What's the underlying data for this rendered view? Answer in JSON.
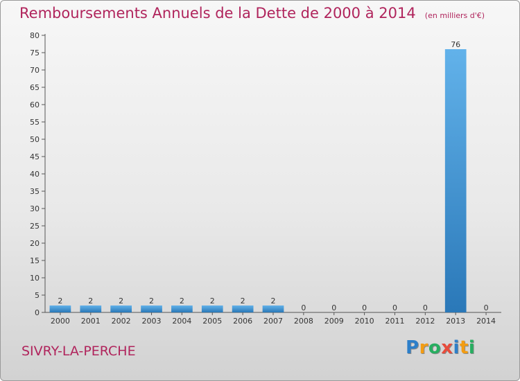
{
  "chart_data": {
    "type": "bar",
    "title": "Remboursements Annuels de la Dette de 2000 à 2014",
    "unit_note": "(en milliers d'€)",
    "categories": [
      "2000",
      "2001",
      "2002",
      "2003",
      "2004",
      "2005",
      "2006",
      "2007",
      "2008",
      "2009",
      "2010",
      "2011",
      "2012",
      "2013",
      "2014"
    ],
    "values": [
      2,
      2,
      2,
      2,
      2,
      2,
      2,
      2,
      0,
      0,
      0,
      0,
      0,
      76,
      0
    ],
    "data_labels": [
      "2",
      "2",
      "2",
      "2",
      "2",
      "2",
      "2",
      "2",
      "0",
      "0",
      "0",
      "0",
      "0",
      "76",
      "0"
    ],
    "ylim": [
      0,
      80
    ],
    "y_ticks": [
      "0",
      "5",
      "10",
      "15",
      "20",
      "25",
      "30",
      "35",
      "40",
      "45",
      "50",
      "55",
      "60",
      "65",
      "70",
      "75",
      "80"
    ],
    "grid": false,
    "colors": {
      "bar_light": "#62b2ea",
      "bar_dark": "#2a78b8",
      "title": "#b0245c"
    }
  },
  "commune": "SIVRY-LA-PERCHE",
  "brand": {
    "text": "Proxiti",
    "letters": [
      {
        "ch": "P",
        "color": "#2d7fc9"
      },
      {
        "ch": "r",
        "color": "#f39c12"
      },
      {
        "ch": "o",
        "color": "#27ae60"
      },
      {
        "ch": "x",
        "color": "#e74c3c"
      },
      {
        "ch": "i",
        "color": "#2d7fc9"
      },
      {
        "ch": "t",
        "color": "#f39c12"
      },
      {
        "ch": "i",
        "color": "#27ae60"
      }
    ]
  }
}
